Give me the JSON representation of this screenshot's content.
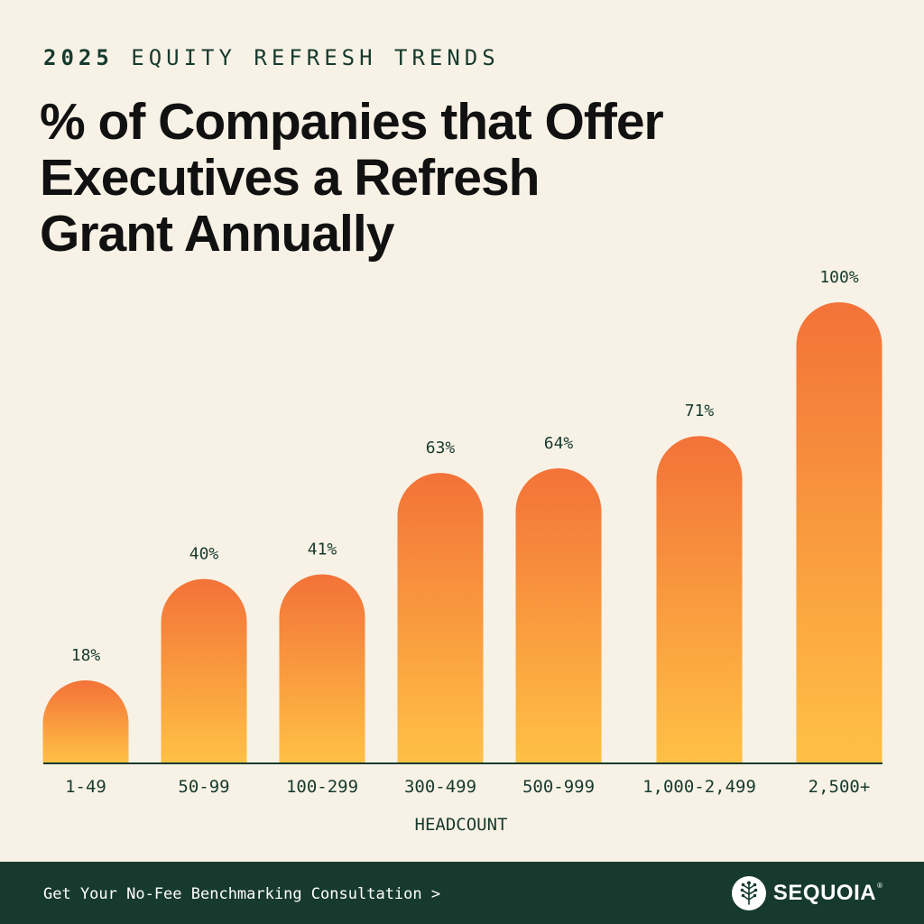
{
  "header": {
    "year": "2025",
    "eyebrow": "EQUITY REFRESH TRENDS",
    "title_lines": [
      "% of Companies that Offer",
      "Executives a Refresh",
      "Grant Annually"
    ]
  },
  "chart_data": {
    "type": "bar",
    "title": "% of Companies that Offer Executives a Refresh Grant Annually",
    "xlabel": "HEADCOUNT",
    "ylabel": "",
    "ylim": [
      0,
      100
    ],
    "categories": [
      "1-49",
      "50-99",
      "100-299",
      "300-499",
      "500-999",
      "1,000-2,499",
      "2,500+"
    ],
    "values": [
      18,
      40,
      41,
      63,
      64,
      71,
      100
    ],
    "value_labels": [
      "18%",
      "40%",
      "41%",
      "63%",
      "64%",
      "71%",
      "100%"
    ],
    "grid": false,
    "colors": {
      "bar_top": "#F37238",
      "bar_bottom": "#FFC145",
      "axis": "#173A2E",
      "text": "#173A2E"
    }
  },
  "footer": {
    "cta_label": "Get Your No-Fee Benchmarking Consultation >",
    "brand_name": "SEQUOIA",
    "brand_registered": "®",
    "background": "#173A2E"
  }
}
